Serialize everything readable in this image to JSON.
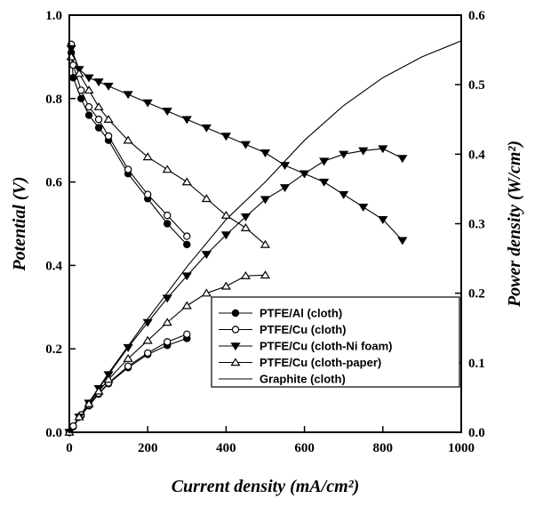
{
  "chart_data": {
    "type": "line",
    "title": "",
    "xlabel": "Current density (mA/cm²)",
    "ylabel_left": "Potential (V)",
    "ylabel_right": "Power density (W/cm²)",
    "xlim": [
      0,
      1000
    ],
    "ylim_left": [
      0,
      1.0
    ],
    "ylim_right": [
      0,
      0.6
    ],
    "x_ticks": [
      0,
      200,
      400,
      600,
      800,
      1000
    ],
    "y_left_ticks": [
      0.0,
      0.2,
      0.4,
      0.6,
      0.8,
      1.0
    ],
    "y_right_ticks": [
      0.0,
      0.1,
      0.2,
      0.3,
      0.4,
      0.5,
      0.6
    ],
    "grid": false,
    "legend_position": "bottom-right",
    "series": [
      {
        "name": "PTFE/Al (cloth)",
        "marker": "filled-circle",
        "polarization": {
          "x": [
            5,
            10,
            30,
            50,
            75,
            100,
            150,
            200,
            250,
            300
          ],
          "y": [
            0.91,
            0.85,
            0.8,
            0.76,
            0.73,
            0.7,
            0.62,
            0.56,
            0.5,
            0.45
          ]
        },
        "power": {
          "x": [
            0,
            10,
            30,
            50,
            75,
            100,
            150,
            200,
            250,
            300
          ],
          "y": [
            0.0,
            0.008,
            0.024,
            0.038,
            0.055,
            0.07,
            0.093,
            0.112,
            0.125,
            0.135
          ]
        }
      },
      {
        "name": "PTFE/Cu (cloth)",
        "marker": "open-circle",
        "polarization": {
          "x": [
            5,
            10,
            30,
            50,
            75,
            100,
            150,
            200,
            250,
            300
          ],
          "y": [
            0.93,
            0.88,
            0.82,
            0.78,
            0.75,
            0.71,
            0.63,
            0.57,
            0.52,
            0.47
          ]
        },
        "power": {
          "x": [
            0,
            10,
            30,
            50,
            75,
            100,
            150,
            200,
            250,
            300
          ],
          "y": [
            0.0,
            0.009,
            0.025,
            0.039,
            0.056,
            0.071,
            0.095,
            0.114,
            0.13,
            0.141
          ]
        }
      },
      {
        "name": "PTFE/Cu (cloth-Ni foam)",
        "marker": "filled-triangle-down",
        "polarization": {
          "x": [
            5,
            25,
            50,
            75,
            100,
            150,
            200,
            250,
            300,
            350,
            400,
            450,
            500,
            550,
            600,
            650,
            700,
            750,
            800,
            850
          ],
          "y": [
            0.92,
            0.87,
            0.85,
            0.84,
            0.83,
            0.81,
            0.79,
            0.77,
            0.75,
            0.73,
            0.71,
            0.69,
            0.67,
            0.64,
            0.62,
            0.6,
            0.57,
            0.54,
            0.51,
            0.46
          ]
        },
        "power": {
          "x": [
            0,
            25,
            50,
            75,
            100,
            150,
            200,
            250,
            300,
            350,
            400,
            450,
            500,
            550,
            600,
            650,
            700,
            750,
            800,
            850
          ],
          "y": [
            0.0,
            0.022,
            0.042,
            0.063,
            0.083,
            0.122,
            0.158,
            0.193,
            0.225,
            0.256,
            0.284,
            0.31,
            0.335,
            0.352,
            0.372,
            0.39,
            0.4,
            0.405,
            0.408,
            0.394
          ]
        }
      },
      {
        "name": "PTFE/Cu (cloth-paper)",
        "marker": "open-triangle-up",
        "polarization": {
          "x": [
            5,
            25,
            50,
            75,
            100,
            150,
            200,
            250,
            300,
            350,
            400,
            450,
            500
          ],
          "y": [
            0.9,
            0.86,
            0.82,
            0.78,
            0.75,
            0.7,
            0.66,
            0.63,
            0.6,
            0.56,
            0.52,
            0.49,
            0.45
          ]
        },
        "power": {
          "x": [
            0,
            25,
            50,
            75,
            100,
            150,
            200,
            250,
            300,
            350,
            400,
            450,
            500
          ],
          "y": [
            0.0,
            0.022,
            0.041,
            0.059,
            0.076,
            0.106,
            0.132,
            0.158,
            0.182,
            0.2,
            0.21,
            0.225,
            0.226
          ]
        }
      },
      {
        "name": "Graphite (cloth)",
        "marker": "none",
        "polarization": {
          "x": [
            0,
            30,
            100,
            200,
            300,
            400,
            500,
            600,
            700,
            800,
            900,
            1000
          ],
          "y": [
            0.0,
            0.026,
            0.085,
            0.163,
            0.238,
            0.306,
            0.36,
            0.42,
            0.47,
            0.51,
            0.54,
            0.563
          ]
        },
        "axis": "right"
      }
    ]
  }
}
